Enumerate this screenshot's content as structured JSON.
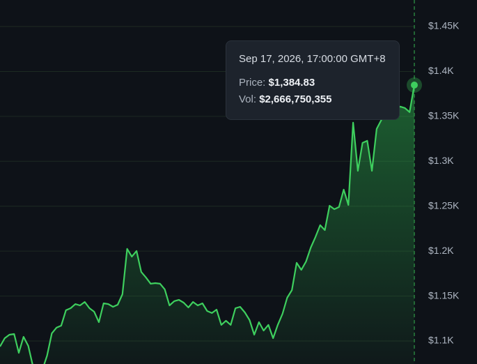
{
  "chart_data": {
    "type": "line",
    "color": "#3ecf5e",
    "grid": true,
    "ylim": [
      1074.4,
      1479.5
    ],
    "yticks": [
      {
        "value": 1100,
        "label": "$1.1K"
      },
      {
        "value": 1150,
        "label": "$1.15K"
      },
      {
        "value": 1200,
        "label": "$1.2K"
      },
      {
        "value": 1250,
        "label": "$1.25K"
      },
      {
        "value": 1300,
        "label": "$1.3K"
      },
      {
        "value": 1350,
        "label": "$1.35K"
      },
      {
        "value": 1400,
        "label": "$1.4K"
      },
      {
        "value": 1450,
        "label": "$1.45K"
      }
    ],
    "values": [
      1093.8,
      1103.1,
      1107,
      1107.8,
      1086.8,
      1104.7,
      1094.6,
      1072,
      1065,
      1068,
      1083.7,
      1108.5,
      1114.8,
      1117.1,
      1134.2,
      1136.5,
      1141.1,
      1139.6,
      1143.5,
      1136.5,
      1132.6,
      1121,
      1141.9,
      1141.1,
      1138,
      1140.4,
      1152,
      1202.5,
      1193.9,
      1200.2,
      1176.9,
      1170.7,
      1163.7,
      1164.4,
      1163.7,
      1157.5,
      1139.6,
      1144.3,
      1145.8,
      1142.7,
      1137.3,
      1143.5,
      1139.6,
      1141.9,
      1133.4,
      1131.1,
      1134.9,
      1117.9,
      1122.5,
      1117.9,
      1136.5,
      1138,
      1131.8,
      1123.3,
      1107,
      1121,
      1111.6,
      1117.9,
      1103.1,
      1117.9,
      1130.3,
      1148.1,
      1156.7,
      1187,
      1179.2,
      1188.5,
      1204,
      1215.7,
      1228.9,
      1223.4,
      1250.6,
      1246.7,
      1249.1,
      1268.5,
      1251.4,
      1343,
      1289.4,
      1320.5,
      1322.8,
      1289.4,
      1336,
      1346.1,
      1351.6,
      1355.4,
      1357,
      1360.9,
      1359.3,
      1354.7,
      1384.83
    ],
    "tooltip": {
      "title": "Sep 17, 2026, 17:00:00 GMT+8",
      "rows": [
        {
          "label": "Price:",
          "value": "$1,384.83"
        },
        {
          "label": "Vol:",
          "value": "$2,666,750,355"
        }
      ]
    }
  }
}
